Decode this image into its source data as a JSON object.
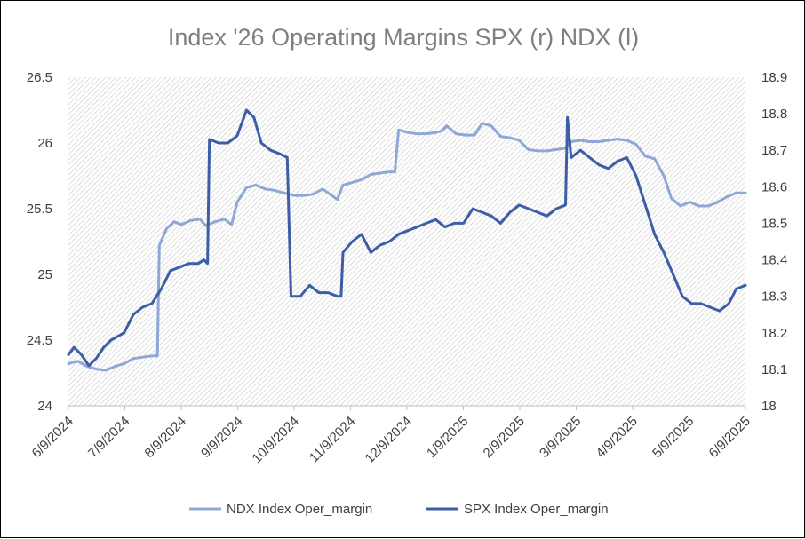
{
  "chart_data": {
    "type": "line",
    "title": "Index '26 Operating Margins SPX (r) NDX (l)",
    "y_left": {
      "range": [
        24,
        26.5
      ],
      "ticks": [
        "24",
        "24.5",
        "25",
        "25.5",
        "26",
        "26.5"
      ]
    },
    "y_right": {
      "range": [
        18,
        18.9
      ],
      "ticks": [
        "18",
        "18.1",
        "18.2",
        "18.3",
        "18.4",
        "18.5",
        "18.6",
        "18.7",
        "18.8",
        "18.9"
      ]
    },
    "x_range": [
      "2024-06-09",
      "2025-06-09"
    ],
    "x_ticks": [
      "6/9/2024",
      "7/9/2024",
      "8/9/2024",
      "9/9/2024",
      "10/9/2024",
      "11/9/2024",
      "12/9/2024",
      "1/9/2025",
      "2/9/2025",
      "3/9/2025",
      "4/9/2025",
      "5/9/2025",
      "6/9/2025"
    ],
    "grid": false,
    "legend_position": "bottom",
    "colors": {
      "ndx": "#8fa7d6",
      "spx": "#3d5ea6"
    },
    "series": [
      {
        "name": "NDX Index Oper_margin",
        "axis": "left",
        "color": "#8fa7d6",
        "points": [
          [
            "2024-06-09",
            24.32
          ],
          [
            "2024-06-14",
            24.34
          ],
          [
            "2024-06-19",
            24.3
          ],
          [
            "2024-06-24",
            24.28
          ],
          [
            "2024-06-29",
            24.27
          ],
          [
            "2024-07-04",
            24.3
          ],
          [
            "2024-07-09",
            24.32
          ],
          [
            "2024-07-14",
            24.36
          ],
          [
            "2024-07-19",
            24.37
          ],
          [
            "2024-07-24",
            24.38
          ],
          [
            "2024-07-27",
            24.38
          ],
          [
            "2024-07-28",
            25.22
          ],
          [
            "2024-08-01",
            25.35
          ],
          [
            "2024-08-05",
            25.4
          ],
          [
            "2024-08-09",
            25.38
          ],
          [
            "2024-08-14",
            25.41
          ],
          [
            "2024-08-19",
            25.42
          ],
          [
            "2024-08-22",
            25.37
          ],
          [
            "2024-08-27",
            25.4
          ],
          [
            "2024-09-01",
            25.42
          ],
          [
            "2024-09-05",
            25.38
          ],
          [
            "2024-09-08",
            25.55
          ],
          [
            "2024-09-13",
            25.66
          ],
          [
            "2024-09-18",
            25.68
          ],
          [
            "2024-09-23",
            25.65
          ],
          [
            "2024-09-28",
            25.64
          ],
          [
            "2024-10-03",
            25.62
          ],
          [
            "2024-10-09",
            25.6
          ],
          [
            "2024-10-14",
            25.6
          ],
          [
            "2024-10-19",
            25.61
          ],
          [
            "2024-10-24",
            25.65
          ],
          [
            "2024-10-29",
            25.6
          ],
          [
            "2024-11-01",
            25.57
          ],
          [
            "2024-11-04",
            25.68
          ],
          [
            "2024-11-09",
            25.7
          ],
          [
            "2024-11-14",
            25.72
          ],
          [
            "2024-11-19",
            25.76
          ],
          [
            "2024-11-24",
            25.77
          ],
          [
            "2024-11-29",
            25.78
          ],
          [
            "2024-12-02",
            25.78
          ],
          [
            "2024-12-04",
            26.1
          ],
          [
            "2024-12-09",
            26.08
          ],
          [
            "2024-12-14",
            26.07
          ],
          [
            "2024-12-19",
            26.07
          ],
          [
            "2024-12-24",
            26.08
          ],
          [
            "2024-12-27",
            26.09
          ],
          [
            "2024-12-30",
            26.13
          ],
          [
            "2025-01-04",
            26.07
          ],
          [
            "2025-01-09",
            26.06
          ],
          [
            "2025-01-14",
            26.06
          ],
          [
            "2025-01-18",
            26.15
          ],
          [
            "2025-01-23",
            26.13
          ],
          [
            "2025-01-28",
            26.05
          ],
          [
            "2025-02-02",
            26.04
          ],
          [
            "2025-02-07",
            26.02
          ],
          [
            "2025-02-12",
            25.95
          ],
          [
            "2025-02-17",
            25.94
          ],
          [
            "2025-02-22",
            25.94
          ],
          [
            "2025-02-27",
            25.95
          ],
          [
            "2025-03-04",
            25.96
          ],
          [
            "2025-03-07",
            26.01
          ],
          [
            "2025-03-12",
            26.02
          ],
          [
            "2025-03-17",
            26.01
          ],
          [
            "2025-03-22",
            26.01
          ],
          [
            "2025-03-27",
            26.02
          ],
          [
            "2025-04-01",
            26.03
          ],
          [
            "2025-04-06",
            26.02
          ],
          [
            "2025-04-11",
            25.99
          ],
          [
            "2025-04-16",
            25.9
          ],
          [
            "2025-04-21",
            25.88
          ],
          [
            "2025-04-26",
            25.75
          ],
          [
            "2025-04-30",
            25.58
          ],
          [
            "2025-05-05",
            25.52
          ],
          [
            "2025-05-10",
            25.55
          ],
          [
            "2025-05-15",
            25.52
          ],
          [
            "2025-05-20",
            25.52
          ],
          [
            "2025-05-25",
            25.55
          ],
          [
            "2025-05-30",
            25.59
          ],
          [
            "2025-06-04",
            25.62
          ],
          [
            "2025-06-09",
            25.62
          ]
        ]
      },
      {
        "name": "SPX Index Oper_margin",
        "axis": "right",
        "color": "#3d5ea6",
        "points": [
          [
            "2024-06-09",
            18.14
          ],
          [
            "2024-06-12",
            18.16
          ],
          [
            "2024-06-16",
            18.14
          ],
          [
            "2024-06-20",
            18.11
          ],
          [
            "2024-06-24",
            18.13
          ],
          [
            "2024-06-28",
            18.16
          ],
          [
            "2024-07-02",
            18.18
          ],
          [
            "2024-07-09",
            18.2
          ],
          [
            "2024-07-14",
            18.25
          ],
          [
            "2024-07-19",
            18.27
          ],
          [
            "2024-07-24",
            18.28
          ],
          [
            "2024-07-29",
            18.32
          ],
          [
            "2024-08-03",
            18.37
          ],
          [
            "2024-08-08",
            18.38
          ],
          [
            "2024-08-13",
            18.39
          ],
          [
            "2024-08-18",
            18.39
          ],
          [
            "2024-08-21",
            18.4
          ],
          [
            "2024-08-23",
            18.39
          ],
          [
            "2024-08-24",
            18.73
          ],
          [
            "2024-08-29",
            18.72
          ],
          [
            "2024-09-03",
            18.72
          ],
          [
            "2024-09-08",
            18.74
          ],
          [
            "2024-09-13",
            18.81
          ],
          [
            "2024-09-17",
            18.79
          ],
          [
            "2024-09-21",
            18.72
          ],
          [
            "2024-09-26",
            18.7
          ],
          [
            "2024-10-01",
            18.69
          ],
          [
            "2024-10-05",
            18.68
          ],
          [
            "2024-10-07",
            18.3
          ],
          [
            "2024-10-12",
            18.3
          ],
          [
            "2024-10-17",
            18.33
          ],
          [
            "2024-10-22",
            18.31
          ],
          [
            "2024-10-27",
            18.31
          ],
          [
            "2024-11-01",
            18.3
          ],
          [
            "2024-11-03",
            18.3
          ],
          [
            "2024-11-04",
            18.42
          ],
          [
            "2024-11-09",
            18.45
          ],
          [
            "2024-11-14",
            18.47
          ],
          [
            "2024-11-19",
            18.42
          ],
          [
            "2024-11-24",
            18.44
          ],
          [
            "2024-11-29",
            18.45
          ],
          [
            "2024-12-04",
            18.47
          ],
          [
            "2024-12-09",
            18.48
          ],
          [
            "2024-12-14",
            18.49
          ],
          [
            "2024-12-19",
            18.5
          ],
          [
            "2024-12-24",
            18.51
          ],
          [
            "2024-12-29",
            18.49
          ],
          [
            "2025-01-03",
            18.5
          ],
          [
            "2025-01-08",
            18.5
          ],
          [
            "2025-01-13",
            18.54
          ],
          [
            "2025-01-18",
            18.53
          ],
          [
            "2025-01-23",
            18.52
          ],
          [
            "2025-01-28",
            18.5
          ],
          [
            "2025-02-02",
            18.53
          ],
          [
            "2025-02-07",
            18.55
          ],
          [
            "2025-02-12",
            18.54
          ],
          [
            "2025-02-17",
            18.53
          ],
          [
            "2025-02-22",
            18.52
          ],
          [
            "2025-02-27",
            18.54
          ],
          [
            "2025-03-04",
            18.55
          ],
          [
            "2025-03-05",
            18.79
          ],
          [
            "2025-03-07",
            18.68
          ],
          [
            "2025-03-12",
            18.7
          ],
          [
            "2025-03-17",
            18.68
          ],
          [
            "2025-03-22",
            18.66
          ],
          [
            "2025-03-27",
            18.65
          ],
          [
            "2025-04-01",
            18.67
          ],
          [
            "2025-04-06",
            18.68
          ],
          [
            "2025-04-11",
            18.63
          ],
          [
            "2025-04-16",
            18.55
          ],
          [
            "2025-04-21",
            18.47
          ],
          [
            "2025-04-26",
            18.42
          ],
          [
            "2025-05-01",
            18.36
          ],
          [
            "2025-05-06",
            18.3
          ],
          [
            "2025-05-11",
            18.28
          ],
          [
            "2025-05-16",
            18.28
          ],
          [
            "2025-05-21",
            18.27
          ],
          [
            "2025-05-26",
            18.26
          ],
          [
            "2025-05-31",
            18.28
          ],
          [
            "2025-06-04",
            18.32
          ],
          [
            "2025-06-09",
            18.33
          ]
        ]
      }
    ]
  }
}
